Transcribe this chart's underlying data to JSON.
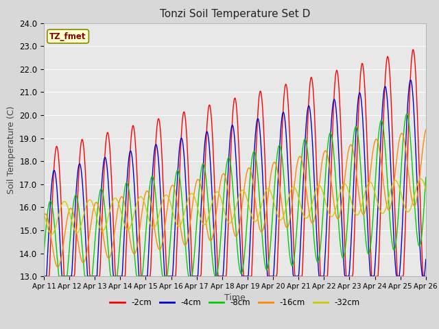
{
  "title": "Tonzi Soil Temperature Set D",
  "xlabel": "Time",
  "ylabel": "Soil Temperature (C)",
  "ylim": [
    13.0,
    24.0
  ],
  "yticks": [
    13.0,
    14.0,
    15.0,
    16.0,
    17.0,
    18.0,
    19.0,
    20.0,
    21.0,
    22.0,
    23.0,
    24.0
  ],
  "x_tick_labels": [
    "Apr 11",
    "Apr 12",
    "Apr 13",
    "Apr 14",
    "Apr 15",
    "Apr 16",
    "Apr 17",
    "Apr 18",
    "Apr 19",
    "Apr 20",
    "Apr 21",
    "Apr 22",
    "Apr 23",
    "Apr 24",
    "Apr 25",
    "Apr 26"
  ],
  "series_colors": [
    "#ff0000",
    "#0000cc",
    "#00cc00",
    "#ff8800",
    "#cccc00"
  ],
  "series_labels": [
    "-2cm",
    "-4cm",
    "-8cm",
    "-16cm",
    "-32cm"
  ],
  "legend_label": "TZ_fmet",
  "legend_label_color": "#880000",
  "legend_bg": "#ffffcc",
  "legend_border": "#888800",
  "fig_bg": "#d8d8d8",
  "plot_bg": "#e8e8e8",
  "grid_color": "#ffffff",
  "days": 15,
  "n_points": 720
}
